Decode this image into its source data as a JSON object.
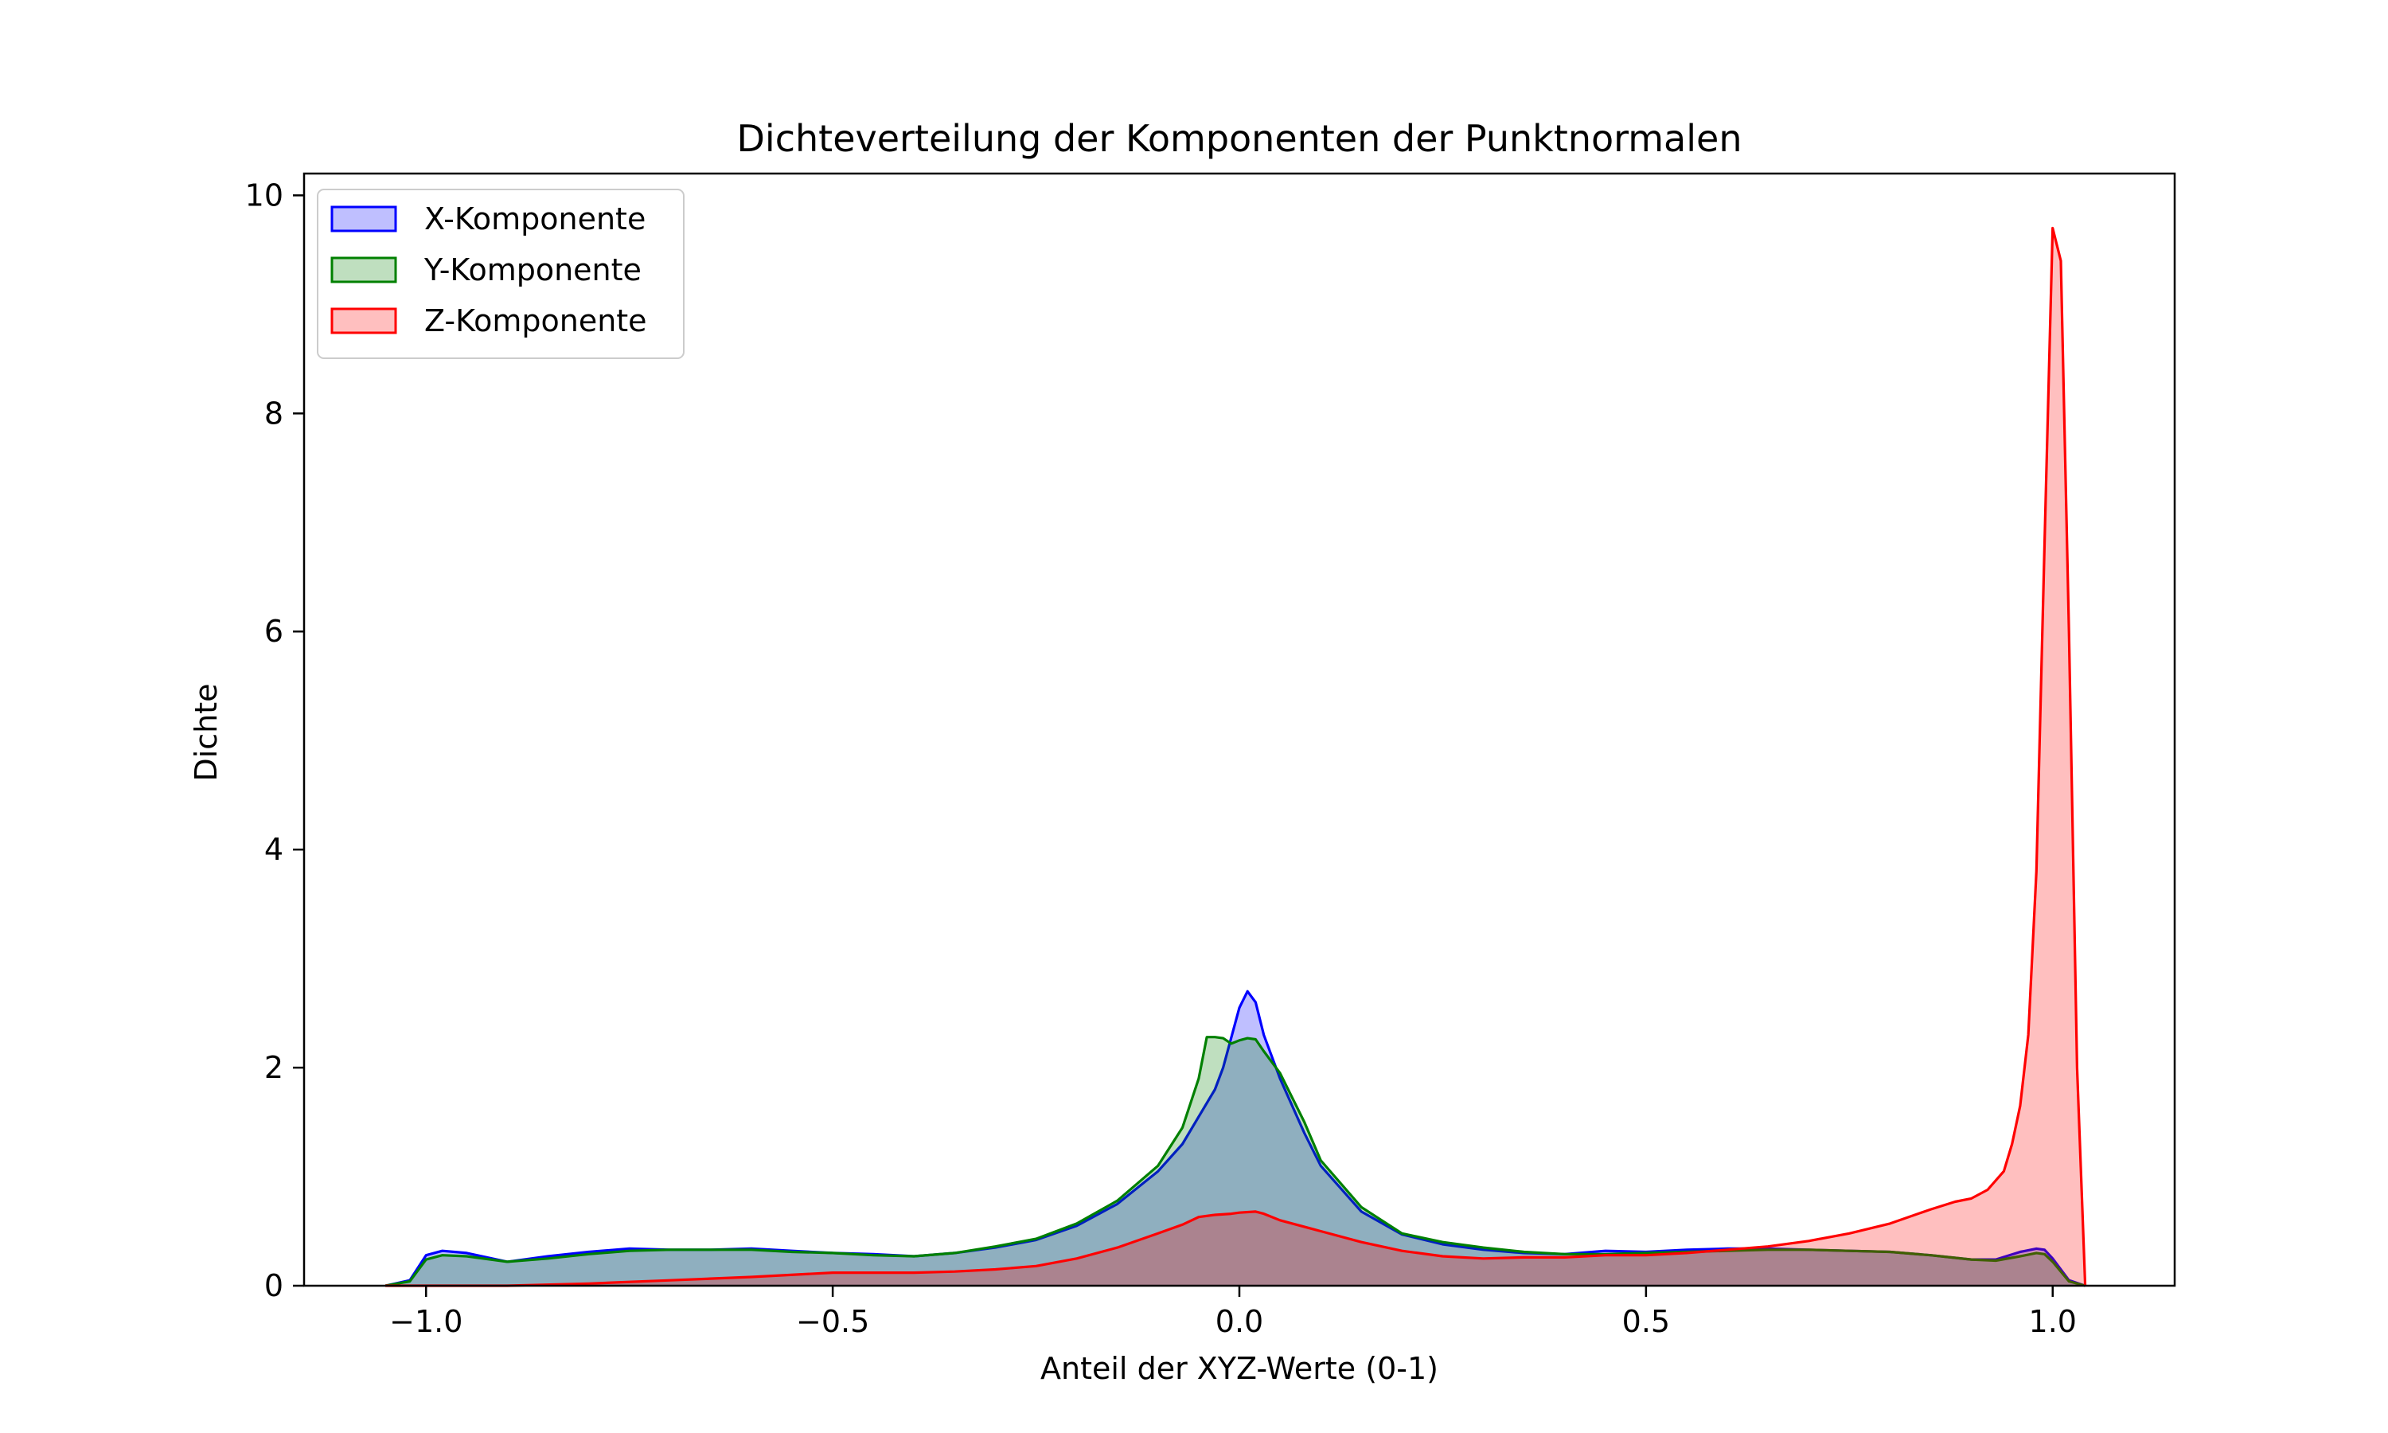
{
  "chart_data": {
    "type": "area",
    "title": "Dichteverteilung der Komponenten der Punktnormalen",
    "xlabel": "Anteil der XYZ-Werte (0-1)",
    "ylabel": "Dichte",
    "xlim": [
      -1.15,
      1.15
    ],
    "ylim": [
      0,
      10.2
    ],
    "xticks": [
      -1.0,
      -0.5,
      0.0,
      0.5,
      1.0
    ],
    "xtick_labels": [
      "−1.0",
      "−0.5",
      "0.0",
      "0.5",
      "1.0"
    ],
    "yticks": [
      0,
      2,
      4,
      6,
      8,
      10
    ],
    "ytick_labels": [
      "0",
      "2",
      "4",
      "6",
      "8",
      "10"
    ],
    "grid": false,
    "legend_position": "top-left",
    "series": [
      {
        "name": "X-Komponente",
        "color": "#0000ff",
        "fill_color": "#0000ff",
        "x": [
          -1.05,
          -1.02,
          -1.0,
          -0.98,
          -0.95,
          -0.9,
          -0.85,
          -0.8,
          -0.75,
          -0.7,
          -0.65,
          -0.6,
          -0.55,
          -0.5,
          -0.45,
          -0.4,
          -0.35,
          -0.3,
          -0.25,
          -0.2,
          -0.15,
          -0.1,
          -0.07,
          -0.05,
          -0.03,
          -0.02,
          0.0,
          0.01,
          0.02,
          0.03,
          0.05,
          0.08,
          0.1,
          0.15,
          0.2,
          0.25,
          0.3,
          0.35,
          0.4,
          0.45,
          0.5,
          0.55,
          0.6,
          0.65,
          0.7,
          0.75,
          0.8,
          0.85,
          0.9,
          0.93,
          0.96,
          0.98,
          0.99,
          1.0,
          1.02,
          1.04
        ],
        "y": [
          0.0,
          0.05,
          0.28,
          0.32,
          0.3,
          0.22,
          0.27,
          0.31,
          0.34,
          0.33,
          0.33,
          0.34,
          0.32,
          0.3,
          0.29,
          0.27,
          0.3,
          0.35,
          0.42,
          0.55,
          0.75,
          1.05,
          1.3,
          1.55,
          1.8,
          2.0,
          2.55,
          2.7,
          2.6,
          2.3,
          1.9,
          1.4,
          1.1,
          0.68,
          0.47,
          0.38,
          0.33,
          0.3,
          0.29,
          0.32,
          0.31,
          0.33,
          0.34,
          0.34,
          0.33,
          0.32,
          0.31,
          0.28,
          0.24,
          0.24,
          0.31,
          0.34,
          0.33,
          0.25,
          0.05,
          0.0
        ]
      },
      {
        "name": "Y-Komponente",
        "color": "#008000",
        "fill_color": "#008000",
        "x": [
          -1.05,
          -1.02,
          -1.0,
          -0.98,
          -0.95,
          -0.9,
          -0.85,
          -0.8,
          -0.75,
          -0.7,
          -0.65,
          -0.6,
          -0.55,
          -0.5,
          -0.45,
          -0.4,
          -0.35,
          -0.3,
          -0.25,
          -0.2,
          -0.15,
          -0.1,
          -0.07,
          -0.05,
          -0.04,
          -0.03,
          -0.02,
          -0.01,
          0.0,
          0.01,
          0.02,
          0.03,
          0.05,
          0.08,
          0.1,
          0.15,
          0.2,
          0.25,
          0.3,
          0.35,
          0.4,
          0.45,
          0.5,
          0.55,
          0.6,
          0.65,
          0.7,
          0.75,
          0.8,
          0.85,
          0.9,
          0.93,
          0.96,
          0.98,
          0.99,
          1.0,
          1.02,
          1.04
        ],
        "y": [
          0.0,
          0.04,
          0.24,
          0.28,
          0.27,
          0.22,
          0.25,
          0.29,
          0.32,
          0.33,
          0.33,
          0.33,
          0.31,
          0.3,
          0.28,
          0.27,
          0.3,
          0.36,
          0.43,
          0.57,
          0.78,
          1.1,
          1.45,
          1.9,
          2.28,
          2.28,
          2.27,
          2.22,
          2.25,
          2.27,
          2.26,
          2.15,
          1.95,
          1.5,
          1.15,
          0.72,
          0.48,
          0.4,
          0.35,
          0.31,
          0.29,
          0.29,
          0.3,
          0.31,
          0.32,
          0.33,
          0.33,
          0.32,
          0.31,
          0.28,
          0.24,
          0.23,
          0.27,
          0.3,
          0.29,
          0.22,
          0.04,
          0.0
        ]
      },
      {
        "name": "Z-Komponente",
        "color": "#ff0000",
        "fill_color": "#ff0000",
        "x": [
          -1.05,
          -1.0,
          -0.95,
          -0.9,
          -0.8,
          -0.7,
          -0.6,
          -0.5,
          -0.45,
          -0.4,
          -0.35,
          -0.3,
          -0.25,
          -0.2,
          -0.15,
          -0.1,
          -0.07,
          -0.05,
          -0.03,
          -0.01,
          0.0,
          0.02,
          0.03,
          0.05,
          0.1,
          0.15,
          0.2,
          0.25,
          0.3,
          0.35,
          0.4,
          0.45,
          0.5,
          0.55,
          0.6,
          0.65,
          0.7,
          0.75,
          0.8,
          0.85,
          0.88,
          0.9,
          0.92,
          0.94,
          0.95,
          0.96,
          0.97,
          0.98,
          0.99,
          1.0,
          1.01,
          1.02,
          1.03,
          1.04
        ],
        "y": [
          0.0,
          0.0,
          0.0,
          0.0,
          0.02,
          0.05,
          0.08,
          0.12,
          0.12,
          0.12,
          0.13,
          0.15,
          0.18,
          0.25,
          0.35,
          0.48,
          0.56,
          0.63,
          0.65,
          0.66,
          0.67,
          0.68,
          0.66,
          0.6,
          0.5,
          0.4,
          0.32,
          0.27,
          0.25,
          0.26,
          0.26,
          0.28,
          0.28,
          0.3,
          0.33,
          0.36,
          0.41,
          0.48,
          0.57,
          0.7,
          0.77,
          0.8,
          0.88,
          1.05,
          1.3,
          1.65,
          2.3,
          3.8,
          6.8,
          9.7,
          9.4,
          6.0,
          2.0,
          0.0
        ]
      }
    ]
  }
}
